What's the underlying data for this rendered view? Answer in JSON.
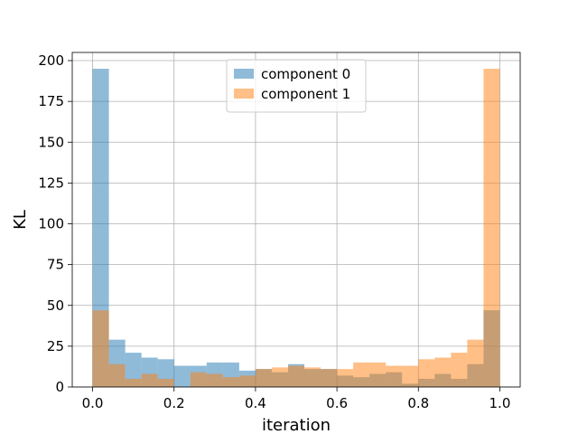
{
  "chart_data": {
    "type": "histogram",
    "title": "",
    "xlabel": "iteration",
    "ylabel": "KL",
    "xlim": [
      -0.05,
      1.05
    ],
    "ylim": [
      0,
      205
    ],
    "bin_edges": [
      0.0,
      0.04,
      0.08,
      0.12,
      0.16,
      0.2,
      0.24,
      0.28,
      0.32,
      0.36,
      0.4,
      0.44,
      0.48,
      0.52,
      0.56,
      0.6,
      0.64,
      0.68,
      0.72,
      0.76,
      0.8,
      0.84,
      0.88,
      0.92,
      0.96,
      1.0
    ],
    "x_ticks": [
      0.0,
      0.2,
      0.4,
      0.6,
      0.8,
      1.0
    ],
    "x_tick_labels": [
      "0.0",
      "0.2",
      "0.4",
      "0.6",
      "0.8",
      "1.0"
    ],
    "y_ticks": [
      0,
      25,
      50,
      75,
      100,
      125,
      150,
      175,
      200
    ],
    "y_tick_labels": [
      "0",
      "25",
      "50",
      "75",
      "100",
      "125",
      "150",
      "175",
      "200"
    ],
    "grid": true,
    "legend_position": "top-center",
    "series": [
      {
        "name": "component 0",
        "color": "#1f77b4",
        "alpha": 0.5,
        "values": [
          195,
          29,
          21,
          18,
          17,
          13,
          13,
          15,
          15,
          10,
          11,
          9,
          14,
          11,
          11,
          7,
          6,
          8,
          9,
          2,
          5,
          8,
          5,
          14,
          47
        ]
      },
      {
        "name": "component 1",
        "color": "#ff7f0e",
        "alpha": 0.5,
        "values": [
          47,
          14,
          5,
          8,
          5,
          0,
          9,
          8,
          6,
          7,
          11,
          12,
          13,
          12,
          11,
          11,
          15,
          15,
          13,
          13,
          17,
          18,
          21,
          29,
          195
        ]
      }
    ]
  }
}
